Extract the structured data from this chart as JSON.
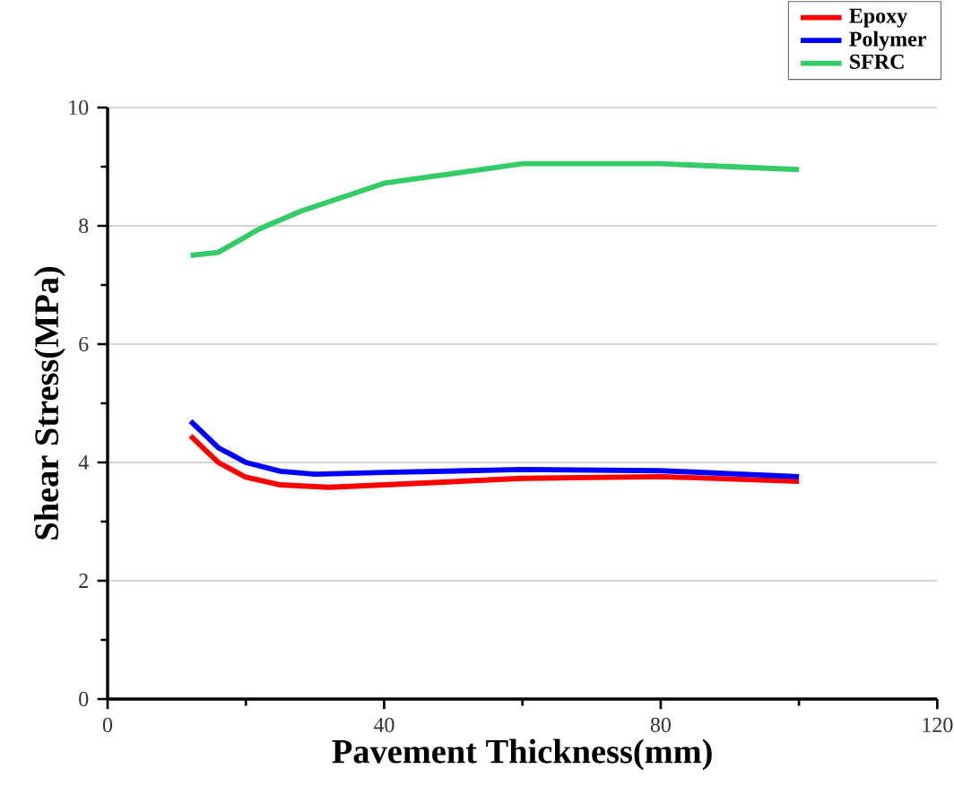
{
  "chart_data": {
    "type": "line",
    "xlabel": "Pavement Thickness(mm)",
    "ylabel": "Shear Stress(MPa)",
    "xlim": [
      0,
      120
    ],
    "xticks": [
      0,
      40,
      80,
      120
    ],
    "ylim": [
      0,
      10
    ],
    "yticks": [
      0,
      2,
      4,
      6,
      8,
      10
    ],
    "grid": "y",
    "legend": "top right",
    "marker": "none",
    "line_style": "solid",
    "series": [
      {
        "name": "Epoxy",
        "color": "#ff0000",
        "x": [
          12,
          16,
          20,
          25,
          32,
          40,
          60,
          80,
          100
        ],
        "values": [
          4.45,
          4.0,
          3.75,
          3.62,
          3.58,
          3.62,
          3.73,
          3.76,
          3.68
        ]
      },
      {
        "name": "Polymer",
        "color": "#0000ff",
        "x": [
          12,
          16,
          20,
          25,
          30,
          40,
          60,
          80,
          100
        ],
        "values": [
          4.7,
          4.25,
          4.0,
          3.85,
          3.8,
          3.83,
          3.88,
          3.86,
          3.76
        ]
      },
      {
        "name": "SFRC",
        "color": "#33cc66",
        "x": [
          12,
          16,
          22,
          28,
          40,
          60,
          80,
          100
        ],
        "values": [
          7.5,
          7.55,
          7.95,
          8.25,
          8.72,
          9.05,
          9.05,
          8.95
        ]
      }
    ]
  }
}
